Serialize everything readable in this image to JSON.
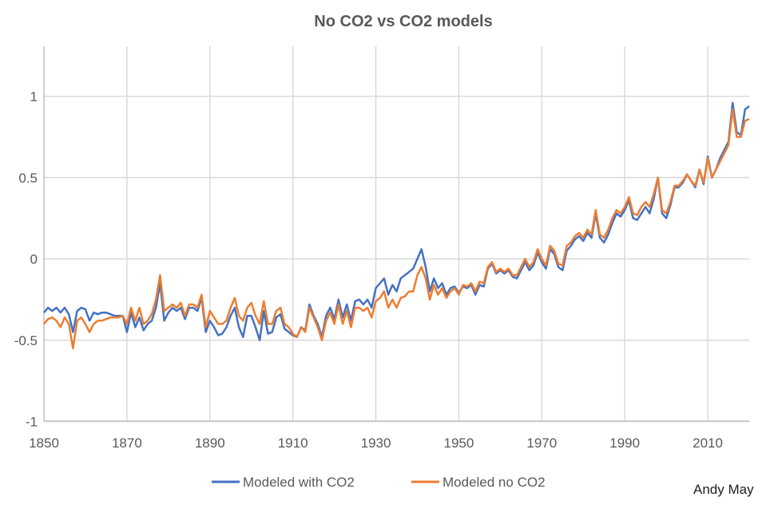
{
  "chart_data": {
    "type": "line",
    "title": "No CO2 vs CO2 models",
    "xlabel": "",
    "ylabel": "",
    "xlim": [
      1850,
      2020
    ],
    "ylim": [
      -1,
      1.2
    ],
    "x_ticks": [
      "1850",
      "1870",
      "1890",
      "1910",
      "1930",
      "1950",
      "1970",
      "1990",
      "2010"
    ],
    "y_ticks": [
      "1",
      "0.5",
      "0",
      "-0.5",
      "-1"
    ],
    "grid": true,
    "legend_position": "bottom",
    "x_start": 1850,
    "series": [
      {
        "name": "Modeled with CO2",
        "color": "#4472c4",
        "values": [
          -0.33,
          -0.3,
          -0.32,
          -0.3,
          -0.33,
          -0.3,
          -0.34,
          -0.45,
          -0.32,
          -0.3,
          -0.31,
          -0.38,
          -0.33,
          -0.34,
          -0.33,
          -0.33,
          -0.34,
          -0.35,
          -0.35,
          -0.35,
          -0.45,
          -0.33,
          -0.42,
          -0.36,
          -0.44,
          -0.4,
          -0.38,
          -0.3,
          -0.15,
          -0.38,
          -0.33,
          -0.3,
          -0.32,
          -0.3,
          -0.37,
          -0.3,
          -0.3,
          -0.32,
          -0.24,
          -0.45,
          -0.38,
          -0.42,
          -0.47,
          -0.46,
          -0.42,
          -0.35,
          -0.3,
          -0.42,
          -0.48,
          -0.35,
          -0.35,
          -0.42,
          -0.5,
          -0.32,
          -0.46,
          -0.45,
          -0.36,
          -0.34,
          -0.43,
          -0.45,
          -0.47,
          -0.48,
          -0.42,
          -0.44,
          -0.28,
          -0.35,
          -0.4,
          -0.48,
          -0.35,
          -0.3,
          -0.37,
          -0.25,
          -0.36,
          -0.28,
          -0.38,
          -0.26,
          -0.25,
          -0.28,
          -0.25,
          -0.3,
          -0.18,
          -0.15,
          -0.12,
          -0.22,
          -0.16,
          -0.2,
          -0.12,
          -0.1,
          -0.08,
          -0.06,
          0.0,
          0.06,
          -0.05,
          -0.2,
          -0.12,
          -0.18,
          -0.15,
          -0.22,
          -0.18,
          -0.17,
          -0.21,
          -0.17,
          -0.18,
          -0.16,
          -0.22,
          -0.16,
          -0.17,
          -0.06,
          -0.03,
          -0.09,
          -0.07,
          -0.09,
          -0.07,
          -0.11,
          -0.12,
          -0.07,
          -0.02,
          -0.07,
          -0.04,
          0.04,
          -0.02,
          -0.06,
          0.06,
          0.03,
          -0.05,
          -0.07,
          0.05,
          0.08,
          0.12,
          0.14,
          0.11,
          0.16,
          0.13,
          0.28,
          0.13,
          0.1,
          0.15,
          0.22,
          0.28,
          0.26,
          0.3,
          0.36,
          0.25,
          0.24,
          0.28,
          0.32,
          0.28,
          0.37,
          0.5,
          0.28,
          0.25,
          0.33,
          0.44,
          0.44,
          0.47,
          0.52,
          0.48,
          0.44,
          0.55,
          0.46,
          0.63,
          0.5,
          0.55,
          0.62,
          0.67,
          0.72,
          0.96,
          0.78,
          0.76,
          0.92,
          0.94
        ]
      },
      {
        "name": "Modeled no CO2",
        "color": "#ed7d31",
        "values": [
          -0.4,
          -0.37,
          -0.36,
          -0.38,
          -0.42,
          -0.36,
          -0.4,
          -0.55,
          -0.38,
          -0.36,
          -0.4,
          -0.45,
          -0.4,
          -0.38,
          -0.38,
          -0.37,
          -0.36,
          -0.36,
          -0.36,
          -0.35,
          -0.4,
          -0.3,
          -0.38,
          -0.3,
          -0.4,
          -0.38,
          -0.34,
          -0.25,
          -0.1,
          -0.32,
          -0.3,
          -0.28,
          -0.3,
          -0.27,
          -0.35,
          -0.28,
          -0.28,
          -0.3,
          -0.22,
          -0.42,
          -0.32,
          -0.36,
          -0.4,
          -0.4,
          -0.38,
          -0.3,
          -0.24,
          -0.35,
          -0.38,
          -0.3,
          -0.27,
          -0.35,
          -0.4,
          -0.26,
          -0.4,
          -0.4,
          -0.32,
          -0.3,
          -0.4,
          -0.42,
          -0.46,
          -0.48,
          -0.42,
          -0.45,
          -0.3,
          -0.36,
          -0.42,
          -0.5,
          -0.38,
          -0.33,
          -0.4,
          -0.28,
          -0.4,
          -0.32,
          -0.42,
          -0.3,
          -0.3,
          -0.32,
          -0.3,
          -0.36,
          -0.26,
          -0.24,
          -0.2,
          -0.3,
          -0.25,
          -0.3,
          -0.24,
          -0.23,
          -0.2,
          -0.2,
          -0.1,
          -0.05,
          -0.12,
          -0.25,
          -0.16,
          -0.22,
          -0.18,
          -0.24,
          -0.2,
          -0.18,
          -0.22,
          -0.16,
          -0.17,
          -0.15,
          -0.2,
          -0.14,
          -0.15,
          -0.05,
          -0.02,
          -0.08,
          -0.06,
          -0.08,
          -0.06,
          -0.1,
          -0.1,
          -0.05,
          0.0,
          -0.05,
          -0.02,
          0.06,
          0.0,
          -0.04,
          0.08,
          0.05,
          -0.03,
          -0.04,
          0.08,
          0.1,
          0.14,
          0.16,
          0.13,
          0.18,
          0.15,
          0.3,
          0.15,
          0.13,
          0.18,
          0.25,
          0.3,
          0.28,
          0.32,
          0.38,
          0.28,
          0.27,
          0.32,
          0.35,
          0.32,
          0.4,
          0.5,
          0.3,
          0.28,
          0.35,
          0.45,
          0.45,
          0.48,
          0.52,
          0.48,
          0.45,
          0.55,
          0.47,
          0.62,
          0.5,
          0.55,
          0.6,
          0.65,
          0.7,
          0.92,
          0.75,
          0.75,
          0.85,
          0.86
        ]
      }
    ]
  },
  "credit": "Andy May"
}
